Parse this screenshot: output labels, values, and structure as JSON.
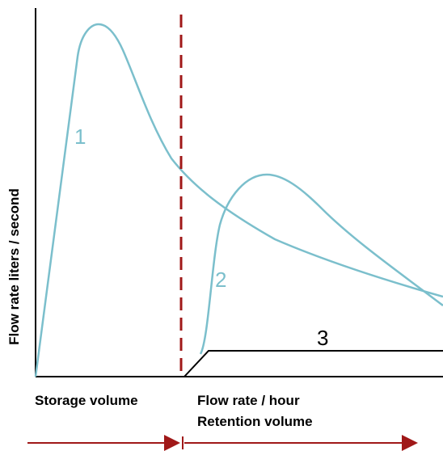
{
  "axis": {
    "y_label": "Flow rate liters / second"
  },
  "regions": {
    "left_label": "Storage volume",
    "right_label_line1": "Flow rate / hour",
    "right_label_line2": "Retention volume"
  },
  "curves": [
    {
      "label": "1",
      "color": "#7bbfcc"
    },
    {
      "label": "2",
      "color": "#7bbfcc"
    },
    {
      "label": "3",
      "color": "#000000"
    }
  ],
  "colors": {
    "divider": "#a01818",
    "arrow": "#a01818",
    "axis": "#000000"
  }
}
